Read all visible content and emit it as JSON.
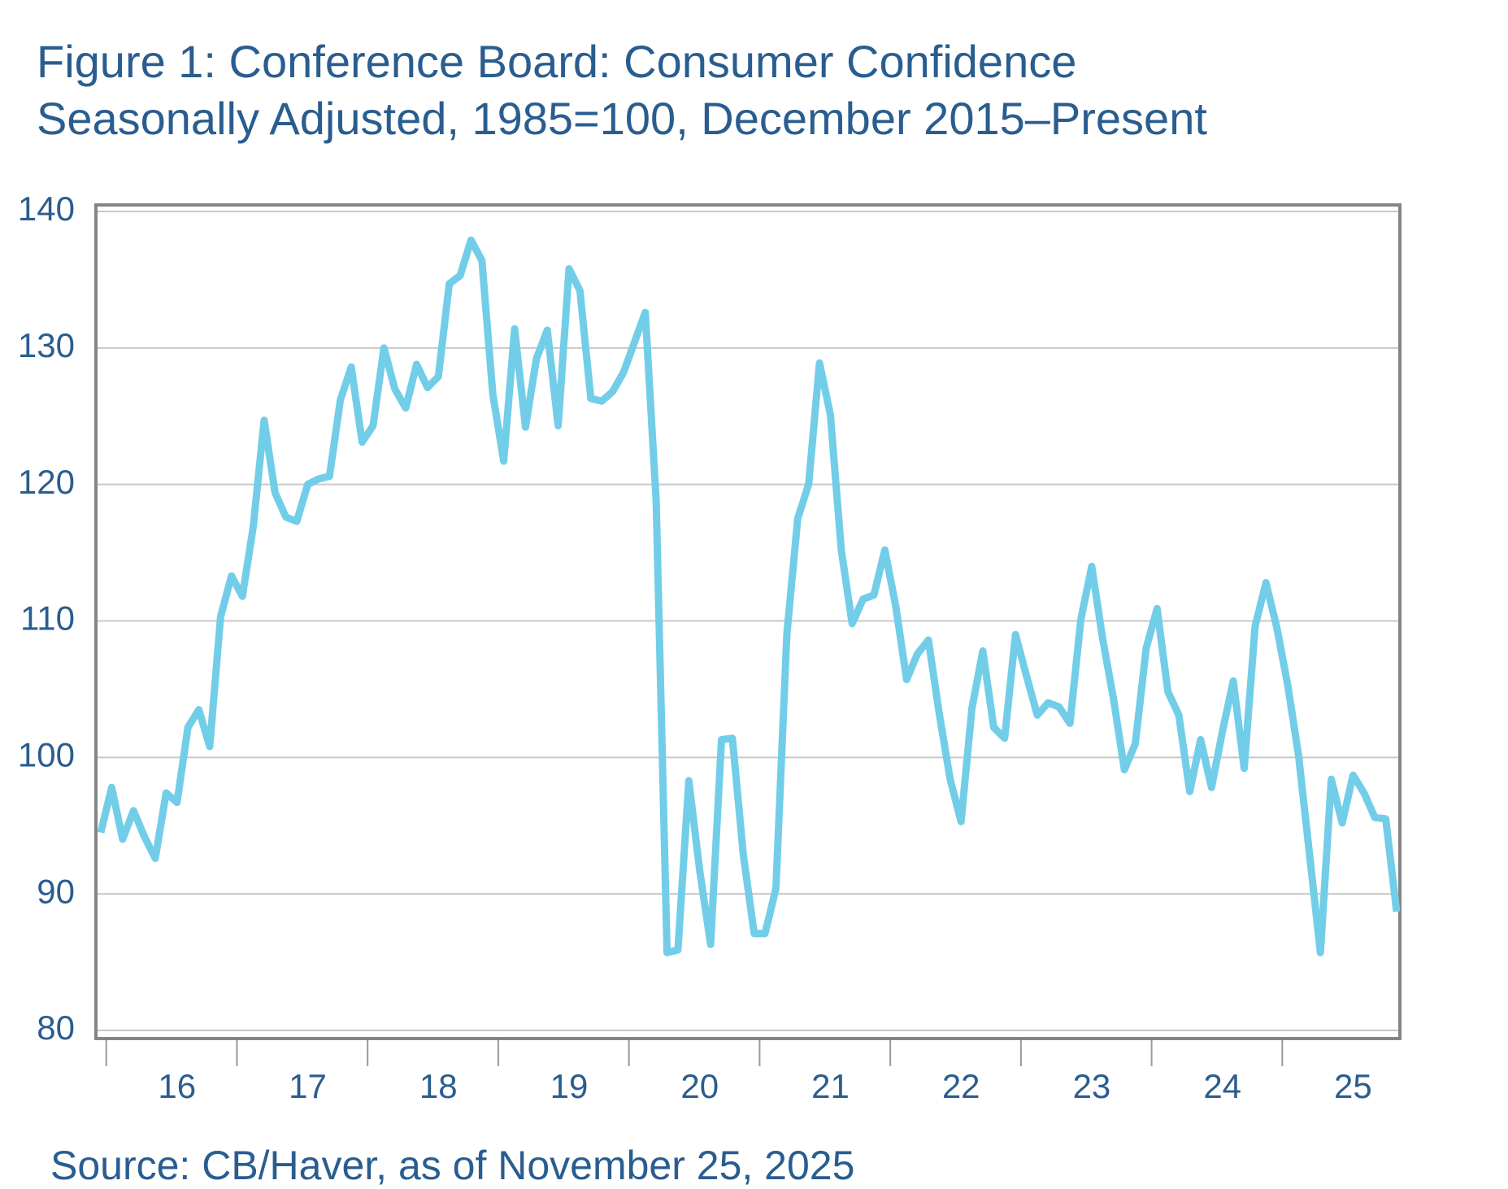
{
  "chart_data": {
    "type": "line",
    "title": "Figure 1: Conference Board: Consumer Confidence",
    "subtitle": "Seasonally Adjusted, 1985=100, December 2015–Present",
    "source": "Source: CB/Haver, as of November 25, 2025",
    "categories": [
      null,
      null,
      null,
      null,
      null,
      null,
      null,
      "16",
      null,
      null,
      null,
      null,
      null,
      null,
      null,
      null,
      null,
      null,
      null,
      "17",
      null,
      null,
      null,
      null,
      null,
      null,
      null,
      null,
      null,
      null,
      null,
      "18",
      null,
      null,
      null,
      null,
      null,
      null,
      null,
      null,
      null,
      null,
      null,
      "19",
      null,
      null,
      null,
      null,
      null,
      null,
      null,
      null,
      null,
      null,
      null,
      "20",
      null,
      null,
      null,
      null,
      null,
      null,
      null,
      null,
      null,
      null,
      null,
      "21",
      null,
      null,
      null,
      null,
      null,
      null,
      null,
      null,
      null,
      null,
      null,
      "22",
      null,
      null,
      null,
      null,
      null,
      null,
      null,
      null,
      null,
      null,
      null,
      "23",
      null,
      null,
      null,
      null,
      null,
      null,
      null,
      null,
      null,
      null,
      null,
      "24",
      null,
      null,
      null,
      null,
      null,
      null,
      null,
      null,
      null,
      null,
      null,
      "25",
      null,
      null,
      null,
      null
    ],
    "series": [
      {
        "color": "#72cde8",
        "values": [
          94.5,
          97.8,
          94.0,
          96.1,
          94.2,
          92.6,
          97.4,
          96.7,
          102.2,
          103.5,
          100.8,
          110.3,
          113.3,
          111.8,
          116.9,
          124.7,
          119.4,
          117.6,
          117.3,
          120.0,
          120.4,
          120.6,
          126.2,
          128.6,
          123.1,
          124.3,
          130.0,
          127.0,
          125.6,
          128.8,
          127.1,
          127.9,
          134.7,
          135.3,
          137.9,
          136.4,
          126.6,
          121.7,
          131.4,
          124.2,
          129.2,
          131.3,
          124.3,
          135.8,
          134.2,
          126.3,
          126.1,
          126.8,
          128.2,
          130.4,
          132.6,
          118.8,
          85.7,
          85.9,
          98.3,
          91.7,
          86.3,
          101.3,
          101.4,
          92.9,
          87.1,
          87.1,
          90.4,
          109.0,
          117.5,
          120.0,
          128.9,
          125.1,
          115.2,
          109.8,
          111.6,
          111.9,
          115.2,
          111.1,
          105.7,
          107.6,
          108.6,
          103.2,
          98.4,
          95.3,
          103.6,
          107.8,
          102.2,
          101.4,
          109.0,
          106.0,
          103.1,
          104.0,
          103.7,
          102.5,
          110.1,
          114.0,
          108.7,
          104.3,
          99.1,
          101.0,
          108.0,
          110.9,
          104.8,
          103.1,
          97.5,
          101.3,
          97.8,
          101.9,
          105.6,
          99.2,
          109.6,
          112.8,
          109.5,
          105.3,
          100.1,
          92.9,
          85.7,
          98.4,
          95.2,
          98.7,
          97.4,
          95.6,
          95.5,
          88.7
        ]
      }
    ],
    "ylim": [
      80,
      140
    ],
    "yticks": [
      80,
      90,
      100,
      110,
      120,
      130,
      140
    ],
    "grid": true
  }
}
